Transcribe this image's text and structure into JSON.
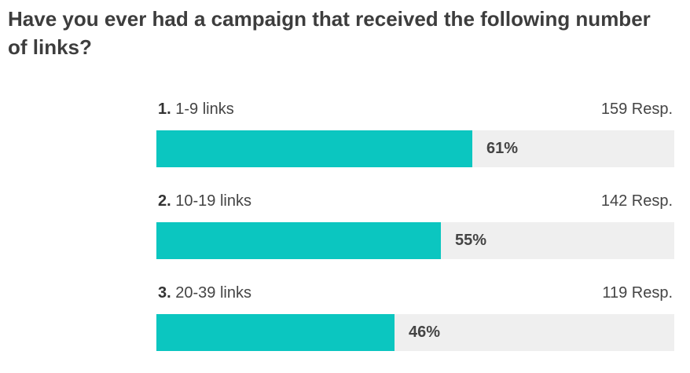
{
  "question": "Have you ever had a campaign that received the following number of links?",
  "colors": {
    "bar": "#0bc6c0",
    "track": "#efefef",
    "title": "#3d3d3d",
    "text": "#444444"
  },
  "options": [
    {
      "num": "1.",
      "label": "1-9 links",
      "responses": "159 Resp.",
      "percent_label": "61%"
    },
    {
      "num": "2.",
      "label": "10-19 links",
      "responses": "142 Resp.",
      "percent_label": "55%"
    },
    {
      "num": "3.",
      "label": "20-39 links",
      "responses": "119 Resp.",
      "percent_label": "46%"
    }
  ],
  "chart_data": {
    "type": "bar",
    "orientation": "horizontal",
    "title": "Have you ever had a campaign that received the following number of links?",
    "categories": [
      "1-9 links",
      "10-19 links",
      "20-39 links"
    ],
    "values": [
      61,
      55,
      46
    ],
    "responses": [
      159,
      142,
      119
    ],
    "xlim": [
      0,
      100
    ],
    "grid": false
  }
}
